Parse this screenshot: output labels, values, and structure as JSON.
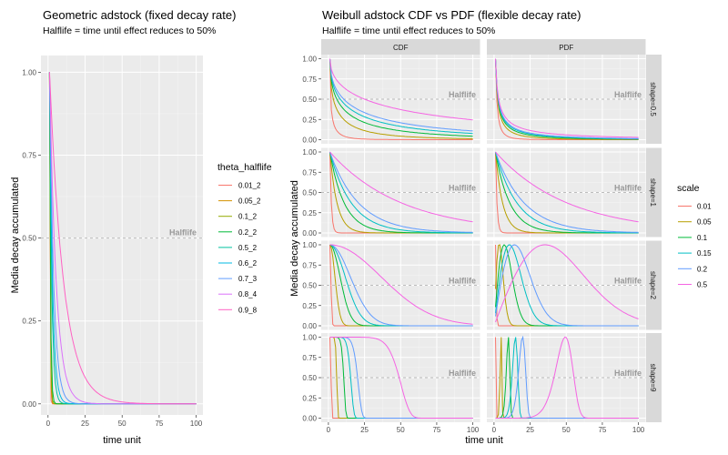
{
  "chart_data": [
    {
      "type": "line",
      "title": "Geometric adstock (fixed decay rate)",
      "subtitle": "Halflife = time until effect reduces to 50%",
      "xlabel": "time unit",
      "ylabel": "Media decay accumulated",
      "xlim": [
        0,
        100
      ],
      "ylim": [
        0,
        1
      ],
      "x_ticks": [
        "0",
        "25",
        "50",
        "75",
        "100"
      ],
      "y_ticks": [
        "0.00",
        "0.25",
        "0.50",
        "0.75",
        "1.00"
      ],
      "grid": true,
      "legend_title": "theta_halflife",
      "legend_position": "right",
      "reference_line": {
        "y": 0.5,
        "label": "Halflife",
        "style": "dashed"
      },
      "series": [
        {
          "name": "0.01_2",
          "theta": 0.01,
          "color": "#F8766D"
        },
        {
          "name": "0.05_2",
          "theta": 0.05,
          "color": "#D39200"
        },
        {
          "name": "0.1_2",
          "theta": 0.1,
          "color": "#93AA00"
        },
        {
          "name": "0.2_2",
          "theta": 0.2,
          "color": "#00BA38"
        },
        {
          "name": "0.5_2",
          "theta": 0.5,
          "color": "#00C19F"
        },
        {
          "name": "0.6_2",
          "theta": 0.6,
          "color": "#00B9E3"
        },
        {
          "name": "0.7_3",
          "theta": 0.7,
          "color": "#619CFF"
        },
        {
          "name": "0.8_4",
          "theta": 0.8,
          "color": "#DB72FB"
        },
        {
          "name": "0.9_8",
          "theta": 0.9,
          "color": "#FF61C3"
        }
      ]
    },
    {
      "type": "line",
      "title": "Weibull adstock CDF vs PDF (flexible decay rate)",
      "subtitle": "Halflife = time until effect reduces to 50%",
      "xlabel": "time unit",
      "ylabel": "Media decay accumulated",
      "xlim": [
        0,
        100
      ],
      "ylim": [
        0,
        1
      ],
      "x_ticks": [
        "0",
        "25",
        "50",
        "75",
        "100"
      ],
      "y_ticks": [
        "0.00",
        "0.25",
        "0.50",
        "0.75",
        "1.00"
      ],
      "grid": true,
      "facet_columns": [
        "CDF",
        "PDF"
      ],
      "facet_rows": [
        "shape=0.5",
        "shape=1",
        "shape=2",
        "shape=9"
      ],
      "shapes": [
        0.5,
        1,
        2,
        9
      ],
      "legend_title": "scale",
      "legend_position": "right",
      "reference_line": {
        "y": 0.5,
        "label": "Halflife",
        "style": "dashed"
      },
      "series": [
        {
          "name": "0.01",
          "scale": 0.01,
          "color": "#F8766D"
        },
        {
          "name": "0.05",
          "scale": 0.05,
          "color": "#B79F00"
        },
        {
          "name": "0.1",
          "scale": 0.1,
          "color": "#00BA38"
        },
        {
          "name": "0.15",
          "scale": 0.15,
          "color": "#00BFC4"
        },
        {
          "name": "0.2",
          "scale": 0.2,
          "color": "#619CFF"
        },
        {
          "name": "0.5",
          "scale": 0.5,
          "color": "#F564E3"
        }
      ]
    }
  ]
}
